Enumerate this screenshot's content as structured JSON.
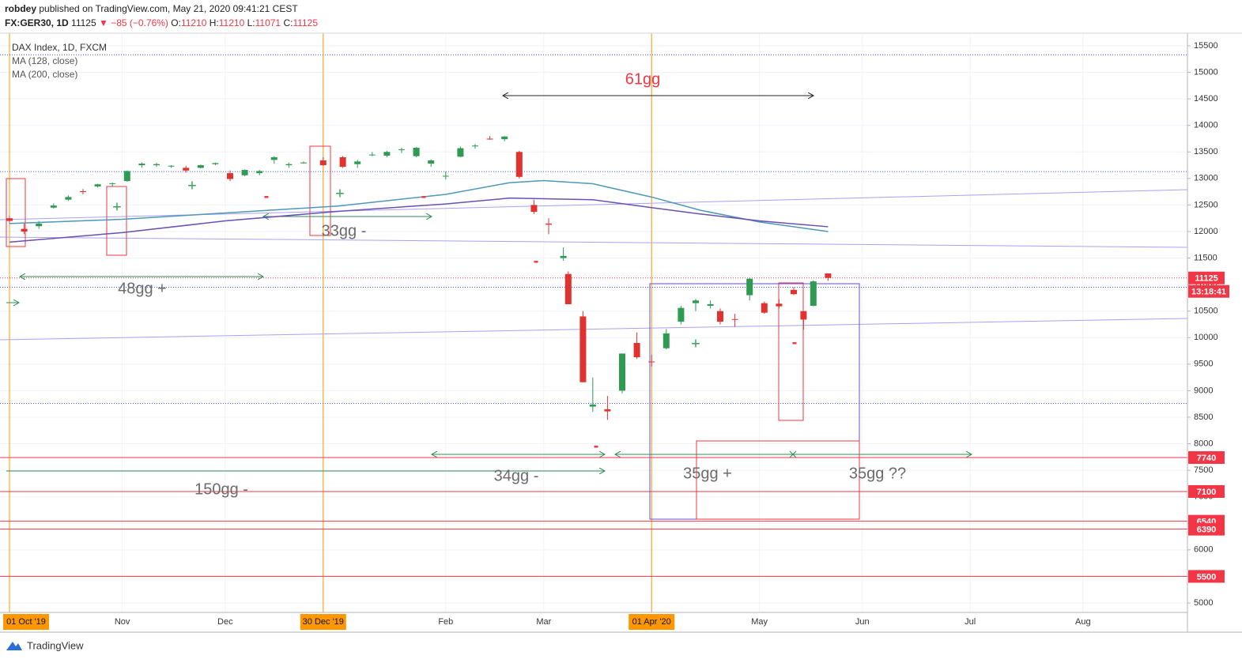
{
  "header": {
    "author": "robdey",
    "published": "published on TradingView.com, May 21, 2020 09:41:21 CEST",
    "symbol": "FX:GER30, 1D",
    "last": "11125",
    "change": "▼ −85 (−0.76%)",
    "ohlc": [
      {
        "label": "O:",
        "value": "11210"
      },
      {
        "label": "H:",
        "value": "11210"
      },
      {
        "label": "L:",
        "value": "11071"
      },
      {
        "label": "C:",
        "value": "11125"
      }
    ]
  },
  "legend": [
    "DAX Index, 1D, FXCM",
    "MA (128, close)",
    "MA (200, close)"
  ],
  "annotations": [
    "61gg",
    "33gg -",
    "48gg +",
    "34gg -",
    "150gg -",
    "35gg +",
    "35gg ??",
    "+",
    "+",
    "+",
    "+",
    "-",
    "-",
    "-",
    "-",
    "-"
  ],
  "footer": "TradingView",
  "countdown": "13:18:41",
  "chart_data": {
    "type": "candlestick",
    "grid": true,
    "ylim": [
      4821,
      15738
    ],
    "yticks": [
      5000,
      5500,
      6000,
      6500,
      7000,
      7500,
      8000,
      8500,
      9000,
      9500,
      10000,
      10500,
      11000,
      11500,
      12000,
      12500,
      13000,
      13500,
      14000,
      14500,
      15000,
      15500
    ],
    "xticks": [
      {
        "value": "2019-10-01",
        "label": "01 Oct '19",
        "highlight": true
      },
      {
        "value": "2019-11-01",
        "label": "Nov"
      },
      {
        "value": "2019-12-02",
        "label": "Dec"
      },
      {
        "value": "2019-12-30",
        "label": "30 Dec '19",
        "highlight": true
      },
      {
        "value": "2020-02-03",
        "label": "Feb"
      },
      {
        "value": "2020-03-02",
        "label": "Mar"
      },
      {
        "value": "2020-04-01",
        "label": "01 Apr '20",
        "highlight": true
      },
      {
        "value": "2020-05-01",
        "label": "May"
      },
      {
        "value": "2020-06-01",
        "label": "Jun"
      },
      {
        "value": "2020-07-01",
        "label": "Jul"
      },
      {
        "value": "2020-08-03",
        "label": "Aug"
      }
    ],
    "series": [
      {
        "name": "DAX Index, 1D, FXCM",
        "up_color": "#2e9a52",
        "down_color": "#e0332f",
        "x": [
          "2019-10-01",
          "2019-10-04",
          "2019-10-09",
          "2019-10-14",
          "2019-10-17",
          "2019-10-22",
          "2019-10-25",
          "2019-10-30",
          "2019-11-04",
          "2019-11-07",
          "2019-11-12",
          "2019-11-15",
          "2019-11-20",
          "2019-11-25",
          "2019-11-28",
          "2019-12-03",
          "2019-12-06",
          "2019-12-11",
          "2019-12-16",
          "2019-12-19",
          "2019-12-24",
          "2019-12-30",
          "2020-01-03",
          "2020-01-08",
          "2020-01-13",
          "2020-01-16",
          "2020-01-21",
          "2020-01-24",
          "2020-01-29",
          "2020-02-03",
          "2020-02-06",
          "2020-02-11",
          "2020-02-14",
          "2020-02-19",
          "2020-02-24",
          "2020-02-27",
          "2020-03-03",
          "2020-03-06",
          "2020-03-09",
          "2020-03-12",
          "2020-03-16",
          "2020-03-19",
          "2020-03-24",
          "2020-03-27",
          "2020-04-01",
          "2020-04-06",
          "2020-04-09",
          "2020-04-14",
          "2020-04-17",
          "2020-04-21",
          "2020-04-24",
          "2020-04-29",
          "2020-05-04",
          "2020-05-07",
          "2020-05-12",
          "2020-05-14",
          "2020-05-18",
          "2020-05-21"
        ],
        "open": [
          12250,
          12050,
          12100,
          12450,
          12600,
          12760,
          12850,
          12900,
          12950,
          13250,
          13250,
          13230,
          13200,
          13200,
          13270,
          13100,
          13060,
          13100,
          13350,
          13250,
          13300,
          13340,
          13400,
          13270,
          13450,
          13430,
          13550,
          13420,
          13280,
          13050,
          13410,
          13620,
          13750,
          13740,
          13500,
          12500,
          12150,
          11500,
          11200,
          10400,
          8700,
          8650,
          9000,
          9900,
          9550,
          9800,
          10300,
          10650,
          10600,
          10500,
          10350,
          10800,
          10650,
          10640,
          10900,
          10500,
          10600,
          11210
        ],
        "high": [
          12300,
          12150,
          12200,
          12530,
          12680,
          12800,
          12900,
          12920,
          13150,
          13300,
          13300,
          13250,
          13240,
          13260,
          13300,
          13150,
          13170,
          13160,
          13420,
          13300,
          13320,
          13400,
          13420,
          13350,
          13500,
          13520,
          13580,
          13590,
          13360,
          13130,
          13600,
          13650,
          13800,
          13800,
          13520,
          12600,
          12250,
          11700,
          11250,
          10500,
          9250,
          8900,
          9700,
          10100,
          9680,
          10160,
          10600,
          10730,
          10700,
          10550,
          10450,
          11130,
          10680,
          10720,
          10950,
          10500,
          11080,
          11210
        ],
        "low": [
          12150,
          11950,
          12050,
          12430,
          12580,
          12700,
          12830,
          12850,
          12940,
          13200,
          13220,
          13200,
          13110,
          13190,
          13250,
          12950,
          13040,
          13060,
          13280,
          13200,
          13280,
          13240,
          13200,
          13200,
          13420,
          13400,
          13480,
          13400,
          13220,
          12980,
          13400,
          13560,
          13730,
          13700,
          13000,
          12330,
          11950,
          11450,
          10650,
          9160,
          8600,
          8450,
          8950,
          9600,
          9450,
          9780,
          10250,
          10500,
          10550,
          10250,
          10200,
          10700,
          10450,
          10550,
          10800,
          10150,
          10590,
          11071
        ],
        "close": [
          12200,
          12000,
          12150,
          12490,
          12650,
          12750,
          12890,
          12910,
          13140,
          13280,
          13270,
          13240,
          13150,
          13250,
          13290,
          12990,
          13160,
          13140,
          13400,
          13270,
          13300,
          13250,
          13220,
          13320,
          13450,
          13500,
          13550,
          13580,
          13340,
          13050,
          13570,
          13620,
          13740,
          13790,
          13030,
          12370,
          12130,
          11540,
          10630,
          9160,
          8740,
          8610,
          9700,
          9630,
          9540,
          10080,
          10560,
          10700,
          10630,
          10300,
          10340,
          11110,
          10470,
          10590,
          10820,
          10340,
          11060,
          11125
        ]
      },
      {
        "name": "MA (128, close)",
        "type": "line",
        "color": "#4f97b8",
        "x": [
          "2019-10-01",
          "2019-11-01",
          "2019-12-02",
          "2020-01-02",
          "2020-02-03",
          "2020-02-20",
          "2020-03-02",
          "2020-03-16",
          "2020-04-01",
          "2020-04-15",
          "2020-05-01",
          "2020-05-21"
        ],
        "values": [
          12150,
          12230,
          12350,
          12480,
          12700,
          12920,
          12960,
          12900,
          12650,
          12400,
          12180,
          12000
        ]
      },
      {
        "name": "MA (200, close)",
        "type": "line",
        "color": "#6a4fb5",
        "x": [
          "2019-10-01",
          "2019-11-01",
          "2019-12-02",
          "2020-01-02",
          "2020-02-03",
          "2020-02-20",
          "2020-03-16",
          "2020-04-01",
          "2020-04-15",
          "2020-05-01",
          "2020-05-21"
        ],
        "values": [
          11800,
          11980,
          12200,
          12380,
          12520,
          12630,
          12600,
          12450,
          12330,
          12200,
          12090
        ]
      }
    ],
    "hlines": [
      {
        "value": 15330,
        "color": "#3d5afe",
        "style": "dotted"
      },
      {
        "value": 13130,
        "color": "#3d5afe",
        "style": "dotted"
      },
      {
        "value": 11125,
        "color": "#f23645",
        "style": "dotted",
        "tag": true
      },
      {
        "value": 10950,
        "color": "#3d5afe",
        "style": "dotted"
      },
      {
        "value": 8760,
        "color": "#3d5afe",
        "style": "dotted"
      },
      {
        "value": 7740,
        "color": "#f23645",
        "style": "solid",
        "tag": true
      },
      {
        "value": 7100,
        "color": "#f23645",
        "style": "solid",
        "tag": true
      },
      {
        "value": 6540,
        "color": "#f23645",
        "style": "solid",
        "tag": true
      },
      {
        "value": 6390,
        "color": "#f23645",
        "style": "solid",
        "tag": true
      },
      {
        "value": 5500,
        "color": "#f23645",
        "style": "solid",
        "tag": true
      }
    ]
  }
}
